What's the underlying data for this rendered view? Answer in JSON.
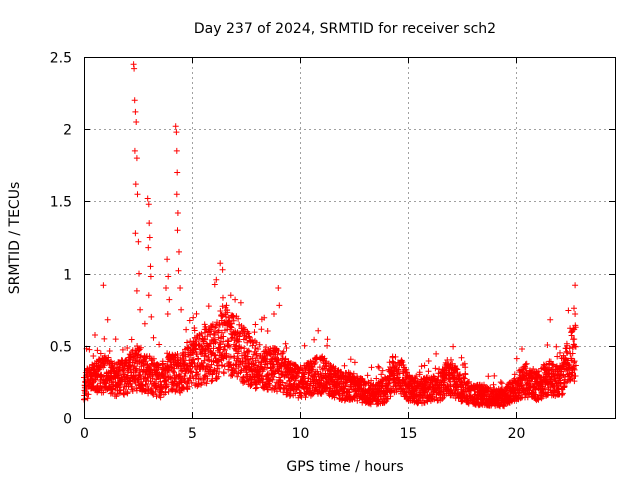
{
  "chart_data": {
    "type": "scatter",
    "title": "Day 237 of 2024, SRMTID for receiver sch2",
    "xlabel": "GPS time / hours",
    "ylabel": "SRMTID / TECUs",
    "xlim": [
      0,
      24.6
    ],
    "ylim": [
      0,
      2.5
    ],
    "x_ticks": [
      0,
      5,
      10,
      15,
      20
    ],
    "x_tick_labels": [
      "0",
      "5",
      "10",
      "15",
      "20"
    ],
    "y_ticks": [
      0,
      0.5,
      1,
      1.5,
      2,
      2.5
    ],
    "y_tick_labels": [
      "0",
      "0.5",
      "1",
      "1.5",
      "2",
      "2.5"
    ],
    "grid": true,
    "marker": "+",
    "marker_color": "#ff0000",
    "series": [
      {
        "name": "SRMTID",
        "x_range": [
          0,
          22.8
        ],
        "sample_step_hours": 0.01,
        "baseline_profile": [
          [
            0,
            0.22
          ],
          [
            0.5,
            0.28
          ],
          [
            1,
            0.3
          ],
          [
            1.5,
            0.26
          ],
          [
            2,
            0.3
          ],
          [
            2.5,
            0.35
          ],
          [
            3,
            0.3
          ],
          [
            3.5,
            0.25
          ],
          [
            4,
            0.32
          ],
          [
            4.5,
            0.3
          ],
          [
            5,
            0.38
          ],
          [
            5.5,
            0.42
          ],
          [
            6,
            0.45
          ],
          [
            6.5,
            0.55
          ],
          [
            7,
            0.5
          ],
          [
            7.5,
            0.42
          ],
          [
            8,
            0.36
          ],
          [
            8.5,
            0.34
          ],
          [
            9,
            0.33
          ],
          [
            9.5,
            0.28
          ],
          [
            10,
            0.24
          ],
          [
            10.5,
            0.28
          ],
          [
            11,
            0.3
          ],
          [
            11.5,
            0.26
          ],
          [
            12,
            0.22
          ],
          [
            12.5,
            0.22
          ],
          [
            13,
            0.18
          ],
          [
            13.5,
            0.16
          ],
          [
            14,
            0.2
          ],
          [
            14.3,
            0.3
          ],
          [
            14.7,
            0.28
          ],
          [
            15,
            0.22
          ],
          [
            15.5,
            0.18
          ],
          [
            16,
            0.2
          ],
          [
            16.5,
            0.22
          ],
          [
            17,
            0.28
          ],
          [
            17.5,
            0.2
          ],
          [
            18,
            0.16
          ],
          [
            18.5,
            0.16
          ],
          [
            19,
            0.14
          ],
          [
            19.5,
            0.14
          ],
          [
            20,
            0.22
          ],
          [
            20.5,
            0.26
          ],
          [
            21,
            0.22
          ],
          [
            21.5,
            0.28
          ],
          [
            22,
            0.24
          ],
          [
            22.5,
            0.4
          ],
          [
            22.8,
            0.45
          ]
        ],
        "spikes": [
          {
            "x": 0.9,
            "y": 0.92
          },
          {
            "x": 1.1,
            "y": 0.68
          },
          {
            "x": 2.3,
            "y": 2.45
          },
          {
            "x": 2.32,
            "y": 2.42
          },
          {
            "x": 2.35,
            "y": 2.2
          },
          {
            "x": 2.38,
            "y": 2.12
          },
          {
            "x": 2.42,
            "y": 2.05
          },
          {
            "x": 2.36,
            "y": 1.85
          },
          {
            "x": 2.45,
            "y": 1.8
          },
          {
            "x": 2.4,
            "y": 1.62
          },
          {
            "x": 2.48,
            "y": 1.55
          },
          {
            "x": 2.38,
            "y": 1.28
          },
          {
            "x": 2.52,
            "y": 1.22
          },
          {
            "x": 2.55,
            "y": 1.0
          },
          {
            "x": 2.45,
            "y": 0.88
          },
          {
            "x": 2.6,
            "y": 0.75
          },
          {
            "x": 2.95,
            "y": 1.52
          },
          {
            "x": 3.0,
            "y": 1.48
          },
          {
            "x": 3.02,
            "y": 1.35
          },
          {
            "x": 3.05,
            "y": 1.25
          },
          {
            "x": 2.98,
            "y": 1.18
          },
          {
            "x": 3.08,
            "y": 1.05
          },
          {
            "x": 3.1,
            "y": 0.98
          },
          {
            "x": 3.0,
            "y": 0.85
          },
          {
            "x": 3.12,
            "y": 0.7
          },
          {
            "x": 3.85,
            "y": 1.1
          },
          {
            "x": 3.9,
            "y": 0.98
          },
          {
            "x": 3.8,
            "y": 0.9
          },
          {
            "x": 3.95,
            "y": 0.82
          },
          {
            "x": 3.88,
            "y": 0.72
          },
          {
            "x": 4.25,
            "y": 2.02
          },
          {
            "x": 4.28,
            "y": 1.98
          },
          {
            "x": 4.3,
            "y": 1.85
          },
          {
            "x": 4.32,
            "y": 1.7
          },
          {
            "x": 4.3,
            "y": 1.55
          },
          {
            "x": 4.35,
            "y": 1.42
          },
          {
            "x": 4.33,
            "y": 1.3
          },
          {
            "x": 4.4,
            "y": 1.15
          },
          {
            "x": 4.38,
            "y": 1.02
          },
          {
            "x": 4.45,
            "y": 0.9
          },
          {
            "x": 4.5,
            "y": 0.75
          },
          {
            "x": 6.8,
            "y": 0.85
          },
          {
            "x": 7.0,
            "y": 0.82
          },
          {
            "x": 6.6,
            "y": 0.78
          },
          {
            "x": 8.8,
            "y": 0.72
          },
          {
            "x": 9.0,
            "y": 0.9
          },
          {
            "x": 9.05,
            "y": 0.78
          },
          {
            "x": 22.7,
            "y": 0.76
          },
          {
            "x": 22.75,
            "y": 0.72
          },
          {
            "x": 21.6,
            "y": 0.68
          }
        ]
      }
    ]
  }
}
